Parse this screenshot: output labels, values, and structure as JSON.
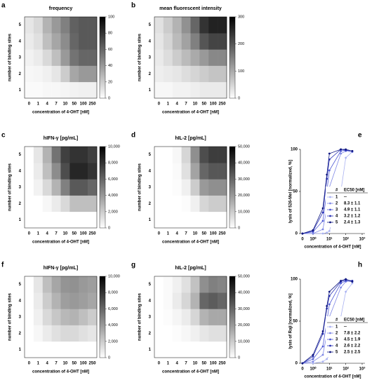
{
  "chart_data": [
    {
      "type": "heatmap",
      "panel": "a",
      "title": "frequency",
      "xlabel": "concentration of 4-OHT [nM]",
      "ylabel": "number of binding sites",
      "x_categories": [
        "0",
        "1",
        "4",
        "7",
        "10",
        "50",
        "100",
        "250"
      ],
      "y_categories": [
        "1",
        "2",
        "3",
        "4",
        "5"
      ],
      "values": [
        [
          2,
          2,
          3,
          3,
          4,
          5,
          6,
          6
        ],
        [
          3,
          4,
          6,
          10,
          20,
          35,
          40,
          40
        ],
        [
          5,
          8,
          15,
          25,
          40,
          55,
          60,
          60
        ],
        [
          8,
          12,
          25,
          35,
          45,
          60,
          65,
          65
        ],
        [
          10,
          15,
          30,
          40,
          50,
          62,
          65,
          65
        ]
      ],
      "zlim": [
        0,
        100
      ],
      "zticks": [
        0,
        20,
        40,
        60,
        80,
        100
      ],
      "colormap": [
        "#ffffff",
        "#000000"
      ]
    },
    {
      "type": "heatmap",
      "panel": "b",
      "title": "mean fluorescent intensity",
      "xlabel": "concentration of 4-OHT [nM]",
      "ylabel": "number of binding sites",
      "x_categories": [
        "0",
        "1",
        "4",
        "7",
        "10",
        "50",
        "100",
        "250"
      ],
      "y_categories": [
        "1",
        "2",
        "3",
        "4",
        "5"
      ],
      "values": [
        [
          10,
          10,
          15,
          15,
          20,
          25,
          25,
          25
        ],
        [
          20,
          25,
          30,
          40,
          50,
          60,
          70,
          70
        ],
        [
          25,
          40,
          60,
          80,
          100,
          120,
          140,
          140
        ],
        [
          30,
          50,
          80,
          110,
          150,
          200,
          220,
          220
        ],
        [
          35,
          60,
          90,
          130,
          180,
          240,
          260,
          260
        ]
      ],
      "zlim": [
        0,
        300
      ],
      "zticks": [
        0,
        100,
        200,
        300
      ],
      "colormap": [
        "#ffffff",
        "#000000"
      ]
    },
    {
      "type": "heatmap",
      "panel": "c",
      "title": "hIFN-γ [pg/mL]",
      "xlabel": "concentration of 4-OHT [nM]",
      "ylabel": "number of binding sites",
      "x_categories": [
        "0",
        "1",
        "4",
        "7",
        "10",
        "50",
        "100",
        "250"
      ],
      "y_categories": [
        "1",
        "2",
        "3",
        "4",
        "5"
      ],
      "values": [
        [
          0,
          0,
          0,
          0,
          0,
          0,
          0,
          0
        ],
        [
          0,
          0,
          300,
          800,
          1500,
          2500,
          2500,
          2500
        ],
        [
          0,
          500,
          1500,
          3000,
          5000,
          6500,
          6500,
          6000
        ],
        [
          0,
          800,
          2500,
          4500,
          7000,
          8500,
          8500,
          8000
        ],
        [
          0,
          1000,
          3000,
          5500,
          7500,
          8000,
          8000,
          7500
        ]
      ],
      "zlim": [
        0,
        10000
      ],
      "zticks": [
        0,
        {
          "value": 2000,
          "label": "2,000"
        },
        {
          "value": 4000,
          "label": "4,000"
        },
        {
          "value": 6000,
          "label": "6,000"
        },
        {
          "value": 8000,
          "label": "8,000"
        },
        {
          "value": 10000,
          "label": "10,000"
        }
      ],
      "colormap": [
        "#ffffff",
        "#000000"
      ]
    },
    {
      "type": "heatmap",
      "panel": "d",
      "title": "hIL-2 [pg/mL]",
      "xlabel": "concentration of 4-OHT [nM]",
      "ylabel": "number of binding sites",
      "x_categories": [
        "0",
        "1",
        "4",
        "7",
        "10",
        "50",
        "100",
        "250"
      ],
      "y_categories": [
        "1",
        "2",
        "3",
        "4",
        "5"
      ],
      "values": [
        [
          0,
          0,
          0,
          0,
          0,
          0,
          0,
          0
        ],
        [
          0,
          0,
          0,
          500,
          3000,
          8000,
          10000,
          10000
        ],
        [
          0,
          0,
          500,
          3000,
          10000,
          20000,
          22000,
          22000
        ],
        [
          0,
          0,
          1000,
          6000,
          18000,
          30000,
          33000,
          33000
        ],
        [
          0,
          0,
          1500,
          8000,
          22000,
          35000,
          38000,
          38000
        ]
      ],
      "zlim": [
        0,
        50000
      ],
      "zticks": [
        0,
        {
          "value": 10000,
          "label": "10,000"
        },
        {
          "value": 20000,
          "label": "20,000"
        },
        {
          "value": 30000,
          "label": "30,000"
        },
        {
          "value": 40000,
          "label": "40,000"
        },
        {
          "value": 50000,
          "label": "50,000"
        }
      ],
      "colormap": [
        "#ffffff",
        "#000000"
      ]
    },
    {
      "type": "line",
      "panel": "e",
      "xlabel": "concentration of 4-OHT [nM]",
      "ylabel": "lysis of 526-Mel [normalized, %]",
      "x": [
        0,
        1,
        4,
        7,
        10,
        50,
        100,
        250
      ],
      "xscale": "log",
      "xlim": [
        0,
        1000
      ],
      "xticks": [
        0,
        {
          "value": 1,
          "label": "10⁰"
        },
        {
          "value": 10,
          "label": "10¹"
        },
        {
          "value": 100,
          "label": "10²"
        },
        {
          "value": 1000,
          "label": "10³"
        }
      ],
      "ylim": [
        0,
        100
      ],
      "yticks": [
        0,
        50,
        100
      ],
      "legend_header": [
        "#",
        "EC50 [nM]"
      ],
      "series": [
        {
          "name": "1",
          "ec50": "--",
          "color": "#aab2f2",
          "values": [
            0,
            0,
            0,
            1,
            3,
            50,
            90,
            97
          ]
        },
        {
          "name": "2",
          "ec50": "8.3 ± 1.1",
          "color": "#7f88e6",
          "values": [
            0,
            0,
            5,
            30,
            55,
            95,
            98,
            97
          ]
        },
        {
          "name": "3",
          "ec50": "4.9 ± 1.1",
          "color": "#4f5ad6",
          "values": [
            0,
            2,
            15,
            50,
            75,
            98,
            99,
            98
          ]
        },
        {
          "name": "4",
          "ec50": "3.2 ± 1.2",
          "color": "#2730b4",
          "values": [
            0,
            3,
            25,
            65,
            88,
            100,
            99,
            98
          ]
        },
        {
          "name": "5",
          "ec50": "2.4 ± 1.3",
          "color": "#0e1680",
          "values": [
            0,
            4,
            30,
            70,
            95,
            100,
            100,
            98
          ]
        }
      ]
    },
    {
      "type": "heatmap",
      "panel": "f",
      "title": "hIFN-γ [pg/mL]",
      "xlabel": "concentration of 4-OHT [nM]",
      "ylabel": "number of binding sites",
      "x_categories": [
        "0",
        "1",
        "4",
        "7",
        "10",
        "50",
        "100",
        "250"
      ],
      "y_categories": [
        "1",
        "2",
        "3",
        "4",
        "5"
      ],
      "values": [
        [
          0,
          0,
          0,
          0,
          0,
          0,
          0,
          0
        ],
        [
          0,
          300,
          800,
          1200,
          1500,
          1500,
          1200,
          1000
        ],
        [
          0,
          600,
          1500,
          2200,
          2800,
          3000,
          2500,
          2000
        ],
        [
          0,
          800,
          2000,
          3000,
          3800,
          4000,
          3800,
          3500
        ],
        [
          0,
          1000,
          2500,
          3500,
          4200,
          4300,
          4000,
          3800
        ]
      ],
      "zlim": [
        0,
        10000
      ],
      "zticks": [
        0,
        {
          "value": 2000,
          "label": "2,000"
        },
        {
          "value": 4000,
          "label": "4,000"
        },
        {
          "value": 6000,
          "label": "6,000"
        },
        {
          "value": 8000,
          "label": "8,000"
        },
        {
          "value": 10000,
          "label": "10,000"
        }
      ],
      "colormap": [
        "#ffffff",
        "#000000"
      ]
    },
    {
      "type": "heatmap",
      "panel": "g",
      "title": "hIL-2 [pg/mL]",
      "xlabel": "concentration of 4-OHT [nM]",
      "ylabel": "number of binding sites",
      "x_categories": [
        "0",
        "1",
        "4",
        "7",
        "10",
        "50",
        "100",
        "250"
      ],
      "y_categories": [
        "1",
        "2",
        "3",
        "4",
        "5"
      ],
      "values": [
        [
          0,
          0,
          0,
          0,
          0,
          0,
          0,
          0
        ],
        [
          0,
          0,
          500,
          1500,
          3000,
          5000,
          6000,
          6000
        ],
        [
          0,
          500,
          2000,
          4000,
          8000,
          15000,
          17000,
          17000
        ],
        [
          0,
          1000,
          4000,
          8000,
          15000,
          30000,
          32000,
          30000
        ],
        [
          0,
          1000,
          3000,
          6000,
          12000,
          22000,
          25000,
          24000
        ]
      ],
      "zlim": [
        0,
        50000
      ],
      "zticks": [
        0,
        {
          "value": 10000,
          "label": "10,000"
        },
        {
          "value": 20000,
          "label": "20,000"
        },
        {
          "value": 30000,
          "label": "30,000"
        },
        {
          "value": 40000,
          "label": "40,000"
        },
        {
          "value": 50000,
          "label": "50,000"
        }
      ],
      "colormap": [
        "#ffffff",
        "#000000"
      ]
    },
    {
      "type": "line",
      "panel": "h",
      "xlabel": "concentration of 4-OHT [nM]",
      "ylabel": "lysis of Raji [normalized, %]",
      "x": [
        0,
        1,
        4,
        7,
        10,
        50,
        100,
        250
      ],
      "xscale": "log",
      "xlim": [
        0,
        1000
      ],
      "xticks": [
        0,
        {
          "value": 1,
          "label": "10⁰"
        },
        {
          "value": 10,
          "label": "10¹"
        },
        {
          "value": 100,
          "label": "10²"
        },
        {
          "value": 1000,
          "label": "10³"
        }
      ],
      "ylim": [
        0,
        100
      ],
      "yticks": [
        0,
        50,
        100
      ],
      "legend_header": [
        "#",
        "EC50 [nM]"
      ],
      "series": [
        {
          "name": "1",
          "ec50": "--",
          "color": "#aab2f2",
          "values": [
            0,
            0,
            2,
            5,
            10,
            55,
            85,
            95
          ]
        },
        {
          "name": "2",
          "ec50": "7.8 ± 2.2",
          "color": "#7f88e6",
          "values": [
            0,
            2,
            10,
            35,
            55,
            90,
            97,
            98
          ]
        },
        {
          "name": "3",
          "ec50": "4.5 ± 1.9",
          "color": "#4f5ad6",
          "values": [
            0,
            5,
            20,
            50,
            70,
            95,
            98,
            97
          ]
        },
        {
          "name": "4",
          "ec50": "2.6 ± 2.2",
          "color": "#2730b4",
          "values": [
            0,
            8,
            35,
            65,
            80,
            97,
            99,
            98
          ]
        },
        {
          "name": "5",
          "ec50": "2.5 ± 2.5",
          "color": "#0e1680",
          "values": [
            0,
            10,
            38,
            68,
            85,
            98,
            100,
            97
          ]
        }
      ]
    }
  ]
}
